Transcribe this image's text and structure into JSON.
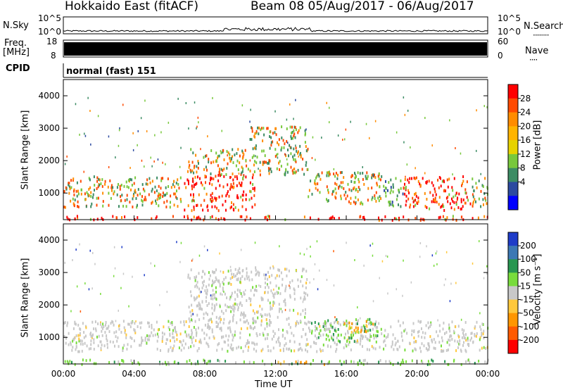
{
  "header": {
    "radar": "Hokkaido East (fitACF)",
    "beam_date": "Beam 08  05/Aug/2017 - 06/Aug/2017"
  },
  "strips": {
    "nsky_label": "N.Sky",
    "nsky_ticks": [
      "10^5",
      "10^0"
    ],
    "nsearch_label": "N.Search",
    "nsearch_ticks": [
      "10^5",
      "10^0"
    ],
    "freq_label_1": "Freq.",
    "freq_label_2": "[MHz]",
    "freq_ticks": [
      "18",
      "8"
    ],
    "nave_label": "Nave",
    "nave_ticks": [
      "60",
      "0"
    ],
    "cpid_label": "CPID",
    "cpid_value": "normal (fast) 151"
  },
  "xaxis": {
    "label": "Time UT",
    "ticks": [
      "00:00",
      "04:00",
      "08:00",
      "12:00",
      "16:00",
      "20:00",
      "00:00"
    ]
  },
  "colors": {
    "ground_scatter": "#c8c8c8",
    "background": "#ffffff",
    "axis": "#000000"
  },
  "chart_data": [
    {
      "type": "heatmap",
      "panel": "power",
      "xlabel": "Time UT",
      "ylabel": "Slant Range [km]",
      "ylim": [
        180,
        4500
      ],
      "yticks": [
        1000,
        2000,
        3000,
        4000
      ],
      "colorbar": {
        "label": "Power [dB]",
        "ticks": [
          "28",
          "24",
          "20",
          "16",
          "12",
          "8",
          "4"
        ],
        "colors": [
          "#ff0000",
          "#ff4a00",
          "#ff8c00",
          "#ffb400",
          "#e6d200",
          "#78c83c",
          "#3c8c64",
          "#2c4aa0",
          "#0000ff"
        ]
      },
      "regions": [
        {
          "t0": 0.0,
          "t1": 24.0,
          "r0": 200,
          "r1": 330,
          "level": "high"
        },
        {
          "t0": 0.0,
          "t1": 6.8,
          "r0": 600,
          "r1": 1550,
          "level": "mid"
        },
        {
          "t0": 6.8,
          "t1": 10.8,
          "r0": 500,
          "r1": 1600,
          "level": "high"
        },
        {
          "t0": 7.0,
          "t1": 10.5,
          "r0": 1600,
          "r1": 2400,
          "level": "mid"
        },
        {
          "t0": 10.5,
          "t1": 13.8,
          "r0": 1600,
          "r1": 3100,
          "level": "mid"
        },
        {
          "t0": 13.8,
          "t1": 18.0,
          "r0": 700,
          "r1": 1700,
          "level": "mid"
        },
        {
          "t0": 18.0,
          "t1": 19.2,
          "r0": 600,
          "r1": 1500,
          "level": "low"
        },
        {
          "t0": 19.2,
          "t1": 23.0,
          "r0": 500,
          "r1": 1550,
          "level": "high"
        },
        {
          "t0": 23.0,
          "t1": 24.0,
          "r0": 600,
          "r1": 1500,
          "level": "mid"
        }
      ]
    },
    {
      "type": "heatmap",
      "panel": "velocity",
      "xlabel": "Time UT",
      "ylabel": "Slant Range [km]",
      "ylim": [
        180,
        4500
      ],
      "yticks": [
        1000,
        2000,
        3000,
        4000
      ],
      "colorbar": {
        "label": "Velocity [m s⁻¹]",
        "ticks": [
          "200",
          "100",
          "50",
          "15",
          "-15",
          "-50",
          "-100",
          "-200"
        ],
        "colors": [
          "#1e3cc8",
          "#3c78b4",
          "#289650",
          "#78dc3c",
          "#c8c8c8",
          "#ffc83c",
          "#ff9600",
          "#ff5a00",
          "#ff0000"
        ]
      },
      "regions": [
        {
          "t0": 0.0,
          "t1": 24.0,
          "r0": 200,
          "r1": 350,
          "level": "green"
        },
        {
          "t0": 0.0,
          "t1": 24.0,
          "r0": 600,
          "r1": 1550,
          "level": "gray"
        },
        {
          "t0": 7.0,
          "t1": 13.8,
          "r0": 1500,
          "r1": 3200,
          "level": "gray"
        },
        {
          "t0": 14.0,
          "t1": 17.8,
          "r0": 900,
          "r1": 1600,
          "level": "green"
        },
        {
          "t0": 15.8,
          "t1": 17.5,
          "r0": 1200,
          "r1": 1550,
          "level": "orange"
        },
        {
          "t0": 12.0,
          "t1": 15.0,
          "r0": 200,
          "r1": 300,
          "level": "orange"
        }
      ]
    }
  ]
}
